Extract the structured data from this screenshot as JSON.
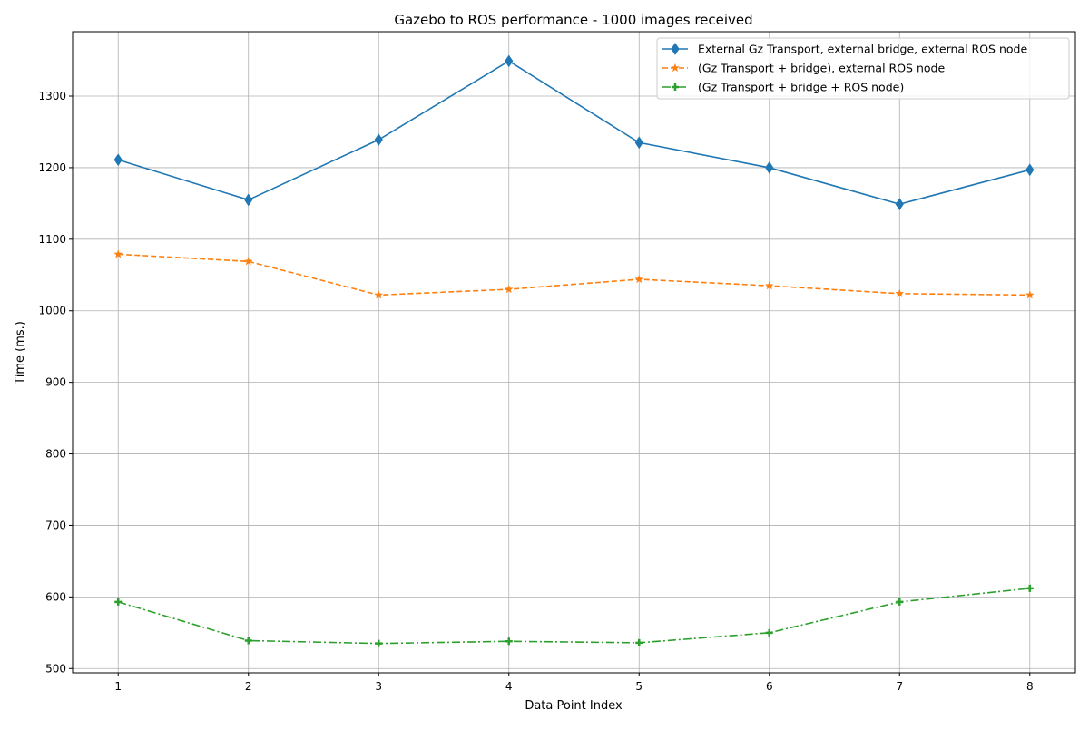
{
  "chart_data": {
    "type": "line",
    "title": "Gazebo to ROS performance - 1000 images received",
    "xlabel": "Data Point Index",
    "ylabel": "Time (ms.)",
    "x": [
      1,
      2,
      3,
      4,
      5,
      6,
      7,
      8
    ],
    "xticks": [
      "1",
      "2",
      "3",
      "4",
      "5",
      "6",
      "7",
      "8"
    ],
    "yticks": [
      "500",
      "600",
      "700",
      "800",
      "900",
      "1000",
      "1100",
      "1200",
      "1300"
    ],
    "xlim": [
      0.65,
      8.35
    ],
    "ylim": [
      494,
      1390
    ],
    "grid": true,
    "legend_position": "top-right",
    "series": [
      {
        "name": "External Gz Transport, external bridge, external ROS node",
        "color": "#1f77b4",
        "marker": "thin-diamond",
        "linestyle": "solid",
        "values": [
          1211,
          1155,
          1239,
          1349,
          1235,
          1200,
          1149,
          1197
        ]
      },
      {
        "name": "(Gz Transport + bridge), external ROS node",
        "color": "#ff7f0e",
        "marker": "star",
        "linestyle": "dashed",
        "values": [
          1079,
          1069,
          1022,
          1030,
          1044,
          1035,
          1024,
          1022
        ]
      },
      {
        "name": "(Gz Transport + bridge + ROS node)",
        "color": "#2ca02c",
        "marker": "plus",
        "linestyle": "dashdot",
        "values": [
          593,
          539,
          535,
          538,
          536,
          550,
          593,
          612
        ]
      }
    ]
  }
}
